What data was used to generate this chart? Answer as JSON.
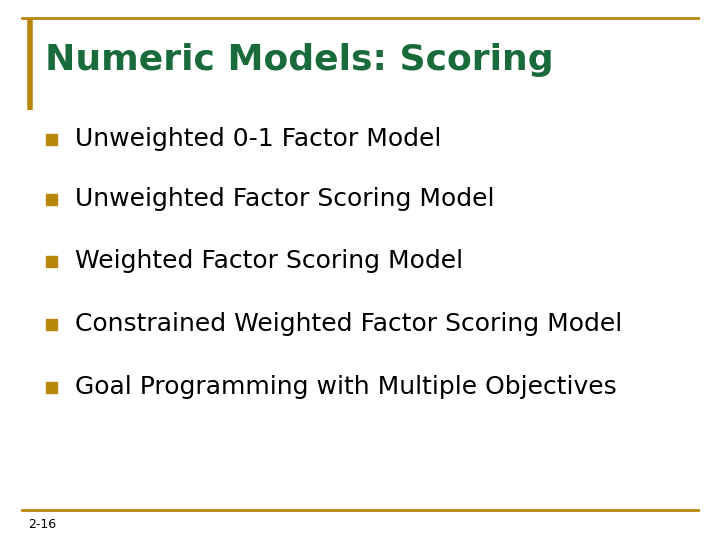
{
  "title": "Numeric Models: Scoring",
  "title_color": "#1a6b3c",
  "title_fontsize": 26,
  "bullet_color": "#b8860b",
  "bullet_text_color": "#000000",
  "bullet_fontsize": 18,
  "items": [
    "Unweighted 0-1 Factor Model",
    "Unweighted Factor Scoring Model",
    "Weighted Factor Scoring Model",
    "Constrained Weighted Factor Scoring Model",
    "Goal Programming with Multiple Objectives"
  ],
  "page_number": "2-16",
  "page_number_fontsize": 9,
  "background_color": "#ffffff",
  "border_color": "#b8860b",
  "title_left_bar_color": "#b8860b"
}
